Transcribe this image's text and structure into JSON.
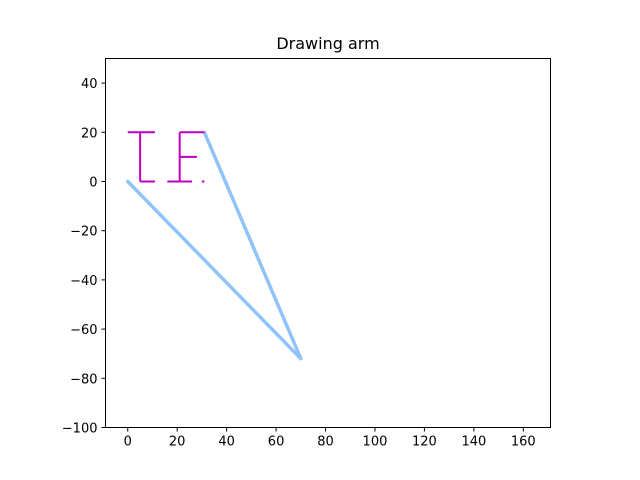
{
  "chart_data": {
    "type": "line",
    "title": "Drawing arm",
    "xlabel": "",
    "ylabel": "",
    "xlim": [
      -9.0,
      171.0
    ],
    "ylim": [
      -100,
      50
    ],
    "xticks": [
      0,
      20,
      40,
      60,
      80,
      100,
      120,
      140,
      160
    ],
    "yticks": [
      -100,
      -80,
      -60,
      -40,
      -20,
      0,
      20,
      40
    ],
    "grid": false,
    "legend": "none",
    "series": [
      {
        "role": "arm",
        "color": "#90c4f8",
        "x": [
          0,
          70,
          31
        ],
        "y": [
          0,
          -72,
          20
        ]
      },
      {
        "role": "drawn-letter-I",
        "color": "#c000c0",
        "segments": [
          {
            "x": [
              0,
              11
            ],
            "y": [
              20,
              20
            ]
          },
          {
            "x": [
              5,
              5
            ],
            "y": [
              20,
              0
            ]
          },
          {
            "x": [
              5,
              11
            ],
            "y": [
              0,
              0
            ]
          }
        ]
      },
      {
        "role": "drawn-letter-E",
        "color": "#c000c0",
        "segments": [
          {
            "x": [
              21,
              31
            ],
            "y": [
              20,
              20
            ]
          },
          {
            "x": [
              21,
              21
            ],
            "y": [
              20,
              0
            ]
          },
          {
            "x": [
              21,
              28
            ],
            "y": [
              10,
              10
            ]
          },
          {
            "x": [
              16,
              26
            ],
            "y": [
              0,
              0
            ]
          },
          {
            "x": [
              30,
              31
            ],
            "y": [
              0,
              0
            ]
          }
        ]
      }
    ]
  }
}
